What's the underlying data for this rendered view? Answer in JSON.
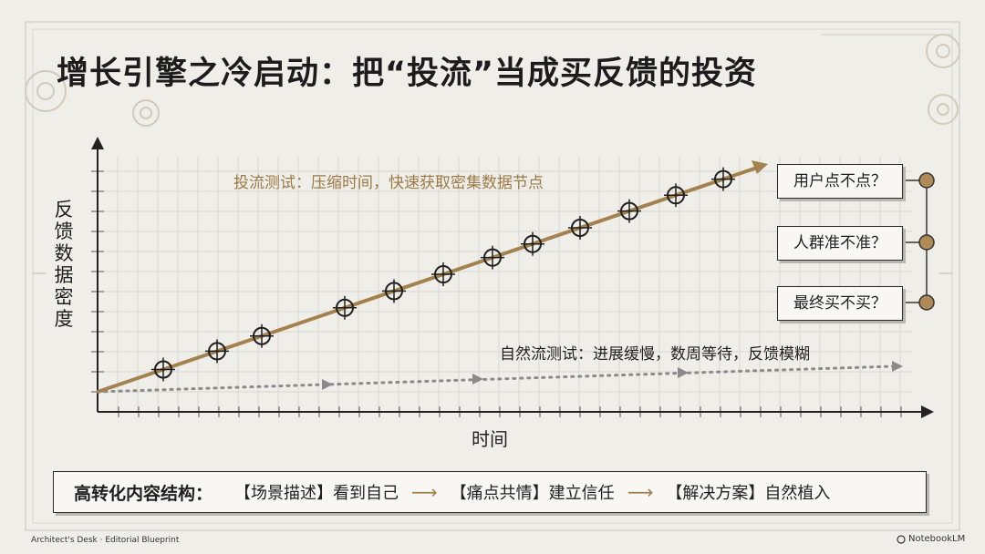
{
  "title": "增长引擎之冷启动：把“投流”当成买反馈的投资",
  "y_axis_label": "反馈数据密度",
  "x_axis_label": "时间",
  "invest_line_label": "投流测试：压缩时间，快速获取密集数据节点",
  "natural_line_label": "自然流测试：进展缓慢，数周等待，反馈模糊",
  "questions": [
    "用户点不点？",
    "人群准不准？",
    "最终买不买？"
  ],
  "bottom_bar": {
    "title": "高转化内容结构：",
    "steps": [
      "【场景描述】看到自己",
      "【痛点共情】建立信任",
      "【解决方案】自然植入"
    ]
  },
  "footer": {
    "left": "Architect's Desk · Editorial Blueprint",
    "right": "NotebookLM"
  },
  "colors": {
    "accent": "#a3824f",
    "natural": "#8a8a8a",
    "background": "#efeee9",
    "dot": "#b08a55"
  }
}
